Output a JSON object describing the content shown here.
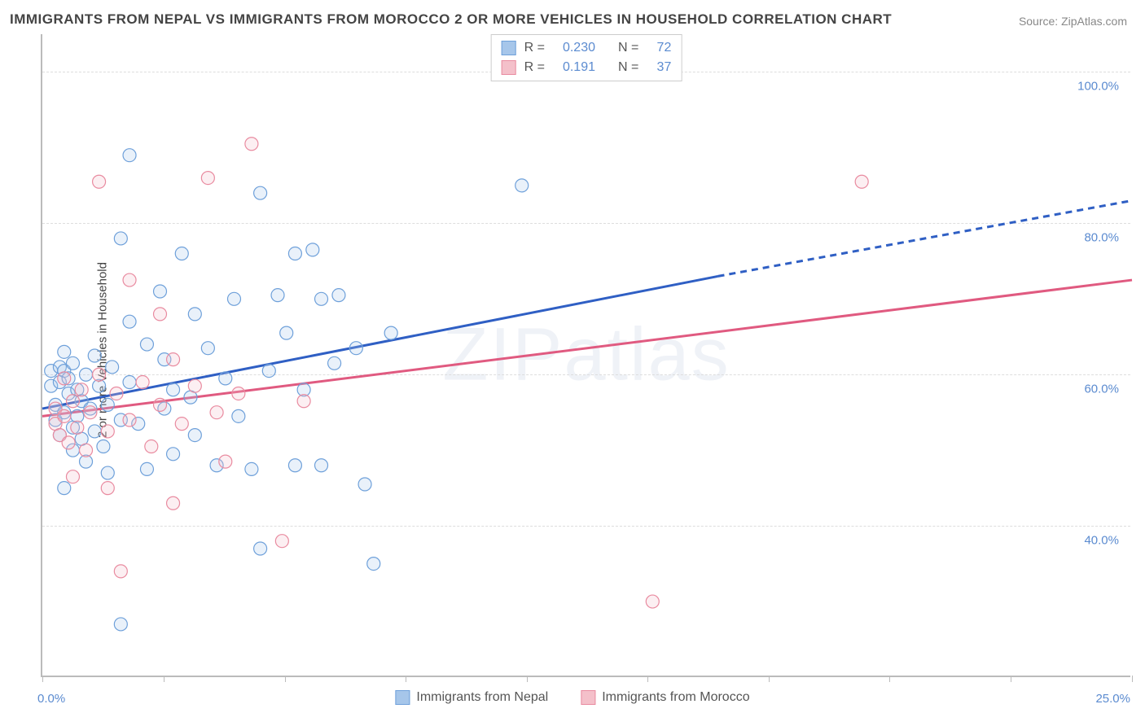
{
  "title": "IMMIGRANTS FROM NEPAL VS IMMIGRANTS FROM MOROCCO 2 OR MORE VEHICLES IN HOUSEHOLD CORRELATION CHART",
  "source_label": "Source: ZipAtlas.com",
  "watermark_text": "ZIPatlas",
  "ylabel": "2 or more Vehicles in Household",
  "chart": {
    "type": "scatter",
    "background_color": "#ffffff",
    "grid_color": "#dddddd",
    "axis_color": "#bbbbbb",
    "tick_label_color": "#5b8bd0",
    "label_color": "#444444",
    "label_fontsize": 15,
    "tick_fontsize": 15,
    "title_fontsize": 17,
    "xlim": [
      0,
      25
    ],
    "ylim": [
      20,
      105
    ],
    "xticks": [
      0,
      2.78,
      5.56,
      8.33,
      11.11,
      13.89,
      16.67,
      19.44,
      22.22,
      25
    ],
    "xtick_label_left": "0.0%",
    "xtick_label_right": "25.0%",
    "yticks": [
      40,
      60,
      80,
      100
    ],
    "ytick_labels": [
      "40.0%",
      "60.0%",
      "80.0%",
      "100.0%"
    ],
    "marker_radius": 8,
    "marker_fill_opacity": 0.25,
    "marker_stroke_width": 1.2,
    "trend_line_width": 3
  },
  "series": [
    {
      "name": "Immigrants from Nepal",
      "color_fill": "#a6c6ea",
      "color_stroke": "#6ea0da",
      "line_color": "#2f5fc4",
      "R": "0.230",
      "N": "72",
      "trend": {
        "x1": 0,
        "y1": 55.5,
        "x2": 15.5,
        "y2": 73.0,
        "dash_from_x": 15.5,
        "x3": 25,
        "y3": 83.0
      },
      "points": [
        [
          0.2,
          58.5
        ],
        [
          0.2,
          60.5
        ],
        [
          0.3,
          54.0
        ],
        [
          0.3,
          56.0
        ],
        [
          0.4,
          52.0
        ],
        [
          0.4,
          59.0
        ],
        [
          0.4,
          61.0
        ],
        [
          0.5,
          55.0
        ],
        [
          0.5,
          60.5
        ],
        [
          0.5,
          63.0
        ],
        [
          0.5,
          45.0
        ],
        [
          0.6,
          57.5
        ],
        [
          0.6,
          59.5
        ],
        [
          0.7,
          53.0
        ],
        [
          0.7,
          61.5
        ],
        [
          0.7,
          50.0
        ],
        [
          0.8,
          58.0
        ],
        [
          0.8,
          54.5
        ],
        [
          0.9,
          56.5
        ],
        [
          0.9,
          51.5
        ],
        [
          1.0,
          60.0
        ],
        [
          1.0,
          48.5
        ],
        [
          1.1,
          55.5
        ],
        [
          1.2,
          62.5
        ],
        [
          1.2,
          52.5
        ],
        [
          1.3,
          58.5
        ],
        [
          1.4,
          50.5
        ],
        [
          1.5,
          56.0
        ],
        [
          1.5,
          47.0
        ],
        [
          1.6,
          61.0
        ],
        [
          1.8,
          54.0
        ],
        [
          1.8,
          78.0
        ],
        [
          1.8,
          27.0
        ],
        [
          2.0,
          59.0
        ],
        [
          2.0,
          67.0
        ],
        [
          2.0,
          89.0
        ],
        [
          2.2,
          53.5
        ],
        [
          2.4,
          64.0
        ],
        [
          2.4,
          47.5
        ],
        [
          2.7,
          71.0
        ],
        [
          2.8,
          55.5
        ],
        [
          2.8,
          62.0
        ],
        [
          3.0,
          49.5
        ],
        [
          3.0,
          58.0
        ],
        [
          3.2,
          76.0
        ],
        [
          3.4,
          57.0
        ],
        [
          3.5,
          68.0
        ],
        [
          3.5,
          52.0
        ],
        [
          3.8,
          63.5
        ],
        [
          4.0,
          48.0
        ],
        [
          4.2,
          59.5
        ],
        [
          4.4,
          70.0
        ],
        [
          4.5,
          54.5
        ],
        [
          4.8,
          47.5
        ],
        [
          5.0,
          84.0
        ],
        [
          5.0,
          37.0
        ],
        [
          5.2,
          60.5
        ],
        [
          5.4,
          70.5
        ],
        [
          5.6,
          65.5
        ],
        [
          5.8,
          76.0
        ],
        [
          5.8,
          48.0
        ],
        [
          6.0,
          58.0
        ],
        [
          6.2,
          76.5
        ],
        [
          6.4,
          70.0
        ],
        [
          6.4,
          48.0
        ],
        [
          6.7,
          61.5
        ],
        [
          6.8,
          70.5
        ],
        [
          7.2,
          63.5
        ],
        [
          7.4,
          45.5
        ],
        [
          7.6,
          35.0
        ],
        [
          8.0,
          65.5
        ],
        [
          11.0,
          85.0
        ]
      ]
    },
    {
      "name": "Immigrants from Morocco",
      "color_fill": "#f4c0ca",
      "color_stroke": "#e98ba0",
      "line_color": "#e05a80",
      "R": "0.191",
      "N": "37",
      "trend": {
        "x1": 0,
        "y1": 54.5,
        "x2": 25,
        "y2": 72.5
      },
      "points": [
        [
          0.3,
          53.5
        ],
        [
          0.3,
          55.5
        ],
        [
          0.4,
          52.0
        ],
        [
          0.5,
          54.5
        ],
        [
          0.5,
          59.5
        ],
        [
          0.6,
          51.0
        ],
        [
          0.7,
          56.5
        ],
        [
          0.7,
          46.5
        ],
        [
          0.8,
          53.0
        ],
        [
          0.9,
          58.0
        ],
        [
          1.0,
          50.0
        ],
        [
          1.1,
          55.0
        ],
        [
          1.3,
          60.0
        ],
        [
          1.3,
          85.5
        ],
        [
          1.5,
          52.5
        ],
        [
          1.5,
          45.0
        ],
        [
          1.7,
          57.5
        ],
        [
          1.8,
          34.0
        ],
        [
          2.0,
          54.0
        ],
        [
          2.0,
          72.5
        ],
        [
          2.3,
          59.0
        ],
        [
          2.5,
          50.5
        ],
        [
          2.7,
          68.0
        ],
        [
          2.7,
          56.0
        ],
        [
          3.0,
          62.0
        ],
        [
          3.2,
          53.5
        ],
        [
          3.5,
          58.5
        ],
        [
          3.8,
          86.0
        ],
        [
          4.0,
          55.0
        ],
        [
          4.2,
          48.5
        ],
        [
          4.5,
          57.5
        ],
        [
          4.8,
          90.5
        ],
        [
          5.5,
          38.0
        ],
        [
          6.0,
          56.5
        ],
        [
          14.0,
          30.0
        ],
        [
          18.8,
          85.5
        ],
        [
          3.0,
          43.0
        ]
      ]
    }
  ],
  "stats_legend_labels": {
    "R": "R =",
    "N": "N ="
  },
  "legend": {
    "series1_label": "Immigrants from Nepal",
    "series2_label": "Immigrants from Morocco"
  }
}
